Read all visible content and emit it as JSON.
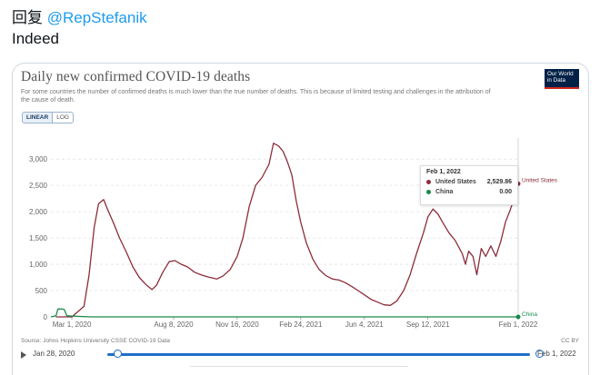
{
  "tweet": {
    "reply_prefix": "回复",
    "mention": "@RepStefanik",
    "text": "Indeed"
  },
  "card": {
    "title": "Daily new confirmed COVID-19 deaths",
    "subtitle": "For some countries the number of confirmed deaths is much lower than the true number of deaths. This is because of limited testing and challenges in the attribution of the cause of death.",
    "logo": "Our World in Data",
    "scale_options": {
      "linear": "LINEAR",
      "log": "LOG"
    },
    "source": "Source: Johns Hopkins University CSSE COVID-19 Data",
    "license": "CC BY",
    "tooltip": {
      "date": "Feb 1, 2022",
      "rows": [
        {
          "name": "United States",
          "value": "2,529.86",
          "color": "#8c2d3a"
        },
        {
          "name": "China",
          "value": "0.00",
          "color": "#1a8a4a"
        }
      ]
    },
    "timeline": {
      "start": "Jan 28, 2020",
      "end": "Feb 1, 2022"
    }
  },
  "chart_data": {
    "type": "line",
    "title": "Daily new confirmed COVID-19 deaths",
    "y_ticks": [
      "0",
      "500",
      "1,000",
      "1,500",
      "2,000",
      "2,500",
      "3,000"
    ],
    "x_ticks": [
      "Mar 1, 2020",
      "Aug 8, 2020",
      "Nov 16, 2020",
      "Feb 24, 2021",
      "Jun 4, 2021",
      "Sep 12, 2021",
      "Feb 1, 2022"
    ],
    "ylim": [
      0,
      3400
    ],
    "grid": true,
    "series": [
      {
        "name": "United States",
        "color": "#8c2d3a",
        "points": [
          [
            "2020-02-05",
            0
          ],
          [
            "2020-03-01",
            0
          ],
          [
            "2020-03-20",
            200
          ],
          [
            "2020-03-28",
            800
          ],
          [
            "2020-04-05",
            1700
          ],
          [
            "2020-04-12",
            2150
          ],
          [
            "2020-04-20",
            2230
          ],
          [
            "2020-04-26",
            2050
          ],
          [
            "2020-05-05",
            1800
          ],
          [
            "2020-05-15",
            1500
          ],
          [
            "2020-05-25",
            1250
          ],
          [
            "2020-06-05",
            950
          ],
          [
            "2020-06-15",
            750
          ],
          [
            "2020-06-25",
            620
          ],
          [
            "2020-07-05",
            520
          ],
          [
            "2020-07-12",
            600
          ],
          [
            "2020-07-22",
            850
          ],
          [
            "2020-08-01",
            1050
          ],
          [
            "2020-08-10",
            1070
          ],
          [
            "2020-08-20",
            1000
          ],
          [
            "2020-08-30",
            950
          ],
          [
            "2020-09-10",
            850
          ],
          [
            "2020-09-20",
            800
          ],
          [
            "2020-10-01",
            760
          ],
          [
            "2020-10-15",
            720
          ],
          [
            "2020-10-25",
            780
          ],
          [
            "2020-11-05",
            900
          ],
          [
            "2020-11-16",
            1150
          ],
          [
            "2020-11-25",
            1500
          ],
          [
            "2020-12-05",
            2100
          ],
          [
            "2020-12-15",
            2500
          ],
          [
            "2020-12-25",
            2650
          ],
          [
            "2021-01-05",
            2900
          ],
          [
            "2021-01-12",
            3300
          ],
          [
            "2021-01-20",
            3250
          ],
          [
            "2021-01-27",
            3150
          ],
          [
            "2021-02-03",
            2950
          ],
          [
            "2021-02-10",
            2700
          ],
          [
            "2021-02-17",
            2200
          ],
          [
            "2021-02-24",
            1800
          ],
          [
            "2021-03-05",
            1400
          ],
          [
            "2021-03-15",
            1100
          ],
          [
            "2021-03-25",
            900
          ],
          [
            "2021-04-05",
            780
          ],
          [
            "2021-04-15",
            720
          ],
          [
            "2021-04-25",
            700
          ],
          [
            "2021-05-05",
            650
          ],
          [
            "2021-05-15",
            580
          ],
          [
            "2021-05-25",
            500
          ],
          [
            "2021-06-04",
            420
          ],
          [
            "2021-06-15",
            330
          ],
          [
            "2021-06-25",
            280
          ],
          [
            "2021-07-05",
            230
          ],
          [
            "2021-07-15",
            220
          ],
          [
            "2021-07-25",
            300
          ],
          [
            "2021-08-05",
            500
          ],
          [
            "2021-08-15",
            800
          ],
          [
            "2021-08-25",
            1200
          ],
          [
            "2021-09-05",
            1600
          ],
          [
            "2021-09-12",
            1900
          ],
          [
            "2021-09-20",
            2050
          ],
          [
            "2021-09-28",
            1950
          ],
          [
            "2021-10-05",
            1800
          ],
          [
            "2021-10-15",
            1600
          ],
          [
            "2021-10-25",
            1450
          ],
          [
            "2021-11-05",
            1200
          ],
          [
            "2021-11-10",
            1000
          ],
          [
            "2021-11-15",
            1250
          ],
          [
            "2021-11-22",
            1150
          ],
          [
            "2021-11-28",
            800
          ],
          [
            "2021-12-05",
            1300
          ],
          [
            "2021-12-12",
            1150
          ],
          [
            "2021-12-20",
            1350
          ],
          [
            "2021-12-28",
            1150
          ],
          [
            "2022-01-05",
            1450
          ],
          [
            "2022-01-12",
            1800
          ],
          [
            "2022-01-20",
            2050
          ],
          [
            "2022-01-27",
            2300
          ],
          [
            "2022-02-01",
            2530
          ]
        ]
      },
      {
        "name": "China",
        "color": "#1a8a4a",
        "points": [
          [
            "2020-01-28",
            0
          ],
          [
            "2020-02-05",
            20
          ],
          [
            "2020-02-08",
            150
          ],
          [
            "2020-02-14",
            150
          ],
          [
            "2020-02-18",
            140
          ],
          [
            "2020-02-22",
            20
          ],
          [
            "2020-03-10",
            10
          ],
          [
            "2020-04-01",
            0
          ],
          [
            "2020-04-17",
            0
          ],
          [
            "2022-02-01",
            0
          ]
        ]
      }
    ]
  }
}
